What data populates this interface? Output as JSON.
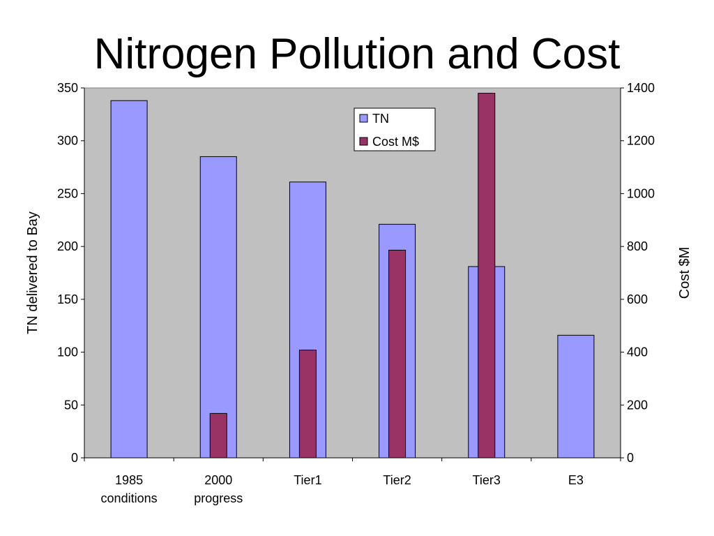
{
  "chart_data": {
    "type": "bar",
    "title": "Nitrogen Pollution and Cost",
    "categories": [
      [
        "1985",
        "conditions"
      ],
      [
        "2000",
        "progress"
      ],
      [
        "Tier1"
      ],
      [
        "Tier2"
      ],
      [
        "Tier3"
      ],
      [
        "E3"
      ]
    ],
    "series": [
      {
        "name": "TN",
        "axis": "left",
        "color": "#9999ff",
        "values": [
          338,
          285,
          261,
          221,
          181,
          116
        ]
      },
      {
        "name": "Cost M$",
        "axis": "right",
        "color": "#993366",
        "values": [
          null,
          168,
          408,
          786,
          1380,
          null
        ]
      }
    ],
    "ylabel": "TN delivered to Bay",
    "ylabel_right": "Cost $M",
    "ylim": [
      0,
      350
    ],
    "yticks": [
      0,
      50,
      100,
      150,
      200,
      250,
      300,
      350
    ],
    "ylim_right": [
      0,
      1400
    ],
    "yticks_right": [
      0,
      200,
      400,
      600,
      800,
      1000,
      1200,
      1400
    ],
    "plot_background": "#c0c0c0",
    "grid": false,
    "legend_position": "top-center"
  }
}
